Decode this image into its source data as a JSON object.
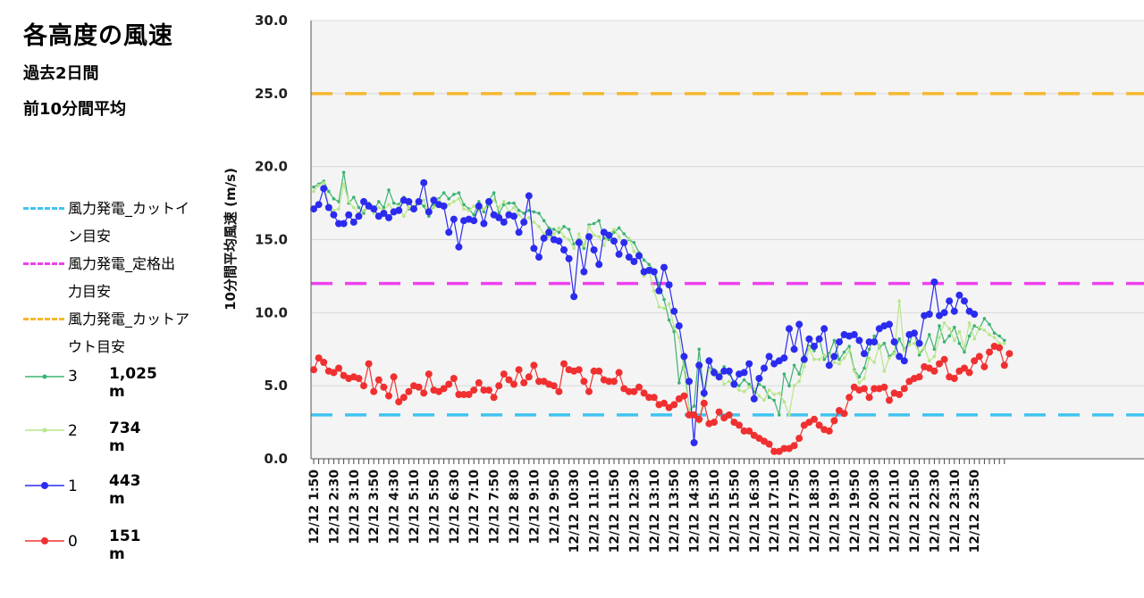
{
  "header": {
    "title": "各高度の風速",
    "period": "過去2日間",
    "averaging": "前10分間平均"
  },
  "legend": {
    "lines": [
      {
        "label_line1": "風力発電_カットイ",
        "label_line2": "ン目安",
        "color": "#40c4f0"
      },
      {
        "label_line1": "風力発電_定格出",
        "label_line2": "力目安",
        "color": "#f040f0"
      },
      {
        "label_line1": "風力発電_カットア",
        "label_line2": "ウト目安",
        "color": "#f5b82e"
      }
    ],
    "series": [
      {
        "num": "3",
        "altitude": "1,025 m",
        "color": "#3cb371"
      },
      {
        "num": "2",
        "altitude": "734 m",
        "color": "#b8e68a"
      },
      {
        "num": "1",
        "altitude": "443 m",
        "color": "#2b2bf0"
      },
      {
        "num": "0",
        "altitude": "151 m",
        "color": "#f03030"
      }
    ]
  },
  "chart_data": {
    "type": "line",
    "ylabel": "10分間平均風速 (m/s)",
    "ylim": [
      0,
      30
    ],
    "y_ticks": [
      "0.0",
      "5.0",
      "10.0",
      "15.0",
      "20.0",
      "25.0",
      "30.0"
    ],
    "x_tick_labels": [
      "12/12 1:50",
      "12/12 2:30",
      "12/12 3:10",
      "12/12 3:50",
      "12/12 4:30",
      "12/12 5:10",
      "12/12 5:50",
      "12/12 6:30",
      "12/12 7:10",
      "12/12 7:50",
      "12/12 8:30",
      "12/12 9:10",
      "12/12 9:50",
      "12/12 10:30",
      "12/12 11:10",
      "12/12 11:50",
      "12/12 12:30",
      "12/12 13:10",
      "12/12 13:50",
      "12/12 14:30",
      "12/12 15:10",
      "12/12 15:50",
      "12/12 16:30",
      "12/12 17:10",
      "12/12 17:50",
      "12/12 18:30",
      "12/12 19:10",
      "12/12 19:50",
      "12/12 20:30",
      "12/12 21:10",
      "12/12 21:50",
      "12/12 22:30",
      "12/12 23:10",
      "12/12 23:50"
    ],
    "x_label_step": 4,
    "grid": true,
    "reference_lines": [
      {
        "name": "風力発電_カットイン目安",
        "value": 3.0,
        "color": "#40c4f0"
      },
      {
        "name": "風力発電_定格出力目安",
        "value": 12.0,
        "color": "#f040f0"
      },
      {
        "name": "風力発電_カットアウト目安",
        "value": 25.0,
        "color": "#f5b82e"
      }
    ],
    "series": [
      {
        "name": "3 1,025 m",
        "color": "#3cb371",
        "marker": "small",
        "values": [
          18.6,
          18.8,
          19.0,
          18.3,
          17.8,
          17.6,
          19.6,
          17.5,
          17.9,
          17.2,
          16.8,
          17.5,
          17.0,
          17.6,
          17.2,
          18.4,
          17.5,
          17.4,
          17.9,
          17.1,
          17.0,
          17.6,
          17.3,
          16.6,
          17.4,
          17.8,
          18.2,
          17.8,
          18.1,
          18.2,
          17.4,
          17.1,
          16.7,
          17.6,
          16.9,
          17.7,
          18.2,
          16.8,
          17.4,
          17.5,
          17.5,
          17.0,
          16.8,
          17.0,
          16.9,
          16.8,
          16.3,
          15.8,
          15.7,
          15.5,
          15.9,
          15.7,
          14.7,
          15.0,
          14.4,
          16.0,
          16.1,
          16.3,
          15.1,
          15.0,
          15.5,
          15.8,
          15.4,
          15.0,
          14.8,
          14.1,
          13.6,
          13.3,
          12.9,
          11.9,
          10.9,
          9.5,
          8.7,
          5.2,
          6.7,
          3.3,
          3.6,
          7.5,
          4.3,
          6.2,
          6.1,
          5.6,
          6.3,
          5.8,
          5.3,
          5.0,
          5.4,
          5.1,
          4.6,
          5.1,
          4.9,
          4.2,
          4.0,
          3.0,
          5.8,
          5.0,
          6.4,
          5.8,
          7.0,
          7.7,
          7.4,
          8.3,
          6.8,
          7.2,
          8.1,
          6.8,
          7.3,
          7.7,
          6.1,
          5.6,
          6.2,
          7.5,
          8.4,
          7.6,
          7.9,
          7.0,
          7.3,
          8.2,
          7.5,
          8.0,
          8.7,
          7.1,
          7.6,
          8.5,
          7.5,
          9.1,
          8.0,
          8.4,
          9.0,
          7.9,
          7.3,
          8.4,
          9.1,
          8.9,
          9.6,
          9.2,
          8.6,
          8.4,
          8.1
        ]
      },
      {
        "name": "2 734 m",
        "color": "#b8e68a",
        "marker": "small",
        "values": [
          18.3,
          18.7,
          18.9,
          17.3,
          17.0,
          17.1,
          18.8,
          17.6,
          17.2,
          16.8,
          17.0,
          17.3,
          16.8,
          17.2,
          17.0,
          17.4,
          17.0,
          17.3,
          16.6,
          17.2,
          17.3,
          17.7,
          17.7,
          16.8,
          17.2,
          17.7,
          17.3,
          17.4,
          17.6,
          17.8,
          17.1,
          17.0,
          17.3,
          17.0,
          17.1,
          17.3,
          17.7,
          17.2,
          17.6,
          16.9,
          17.2,
          16.7,
          16.4,
          16.5,
          16.2,
          15.9,
          15.4,
          15.2,
          15.4,
          15.8,
          15.2,
          15.0,
          14.4,
          15.4,
          14.6,
          15.9,
          15.3,
          15.2,
          14.6,
          15.4,
          15.7,
          15.2,
          14.7,
          15.1,
          14.2,
          13.9,
          12.5,
          12.8,
          11.5,
          10.4,
          10.3,
          10.6,
          9.0,
          8.3,
          6.1,
          3.3,
          3.1,
          2.5,
          4.6,
          6.1,
          5.7,
          5.9,
          5.1,
          5.3,
          5.0,
          4.7,
          4.6,
          4.9,
          4.8,
          4.3,
          4.0,
          4.7,
          4.4,
          4.5,
          3.9,
          3.0,
          5.0,
          5.3,
          6.3,
          7.6,
          6.8,
          6.8,
          7.1,
          7.1,
          6.6,
          6.5,
          6.9,
          7.4,
          6.0,
          5.2,
          5.5,
          6.9,
          6.6,
          7.8,
          6.0,
          6.9,
          7.2,
          10.8,
          7.4,
          7.8,
          7.9,
          7.3,
          7.6,
          6.7,
          7.0,
          8.3,
          9.3,
          8.9,
          8.1,
          8.7,
          7.6,
          9.3,
          8.2,
          9.0,
          8.8,
          8.5,
          8.3,
          7.9,
          7.9
        ]
      },
      {
        "name": "1 443 m",
        "color": "#2b2bf0",
        "marker": "large",
        "values": [
          17.1,
          17.4,
          18.5,
          17.2,
          16.7,
          16.1,
          16.1,
          16.7,
          16.2,
          16.6,
          17.6,
          17.3,
          17.1,
          16.6,
          16.8,
          16.5,
          16.9,
          17.0,
          17.7,
          17.6,
          17.1,
          17.6,
          18.9,
          16.9,
          17.7,
          17.4,
          17.3,
          15.5,
          16.4,
          14.5,
          16.3,
          16.4,
          16.3,
          17.3,
          16.1,
          17.6,
          16.7,
          16.5,
          16.2,
          16.7,
          16.6,
          15.5,
          16.2,
          18.0,
          14.4,
          13.8,
          15.1,
          15.5,
          15.0,
          14.9,
          14.3,
          13.7,
          11.1,
          14.8,
          12.8,
          15.2,
          14.3,
          13.3,
          15.5,
          15.3,
          14.9,
          14.0,
          14.8,
          13.8,
          13.5,
          13.9,
          12.8,
          12.9,
          12.8,
          11.5,
          13.1,
          11.9,
          10.1,
          9.1,
          7.0,
          5.3,
          1.1,
          6.4,
          4.5,
          6.7,
          5.9,
          5.6,
          6.0,
          6.0,
          5.1,
          5.8,
          5.9,
          6.5,
          4.1,
          5.5,
          6.2,
          7.0,
          6.5,
          6.7,
          6.9,
          8.9,
          7.5,
          9.2,
          6.8,
          8.2,
          7.7,
          8.2,
          8.9,
          6.4,
          7.0,
          8.0,
          8.5,
          8.4,
          8.5,
          8.1,
          7.2,
          8.0,
          8.0,
          8.9,
          9.1,
          9.2,
          8.0,
          7.0,
          6.7,
          8.5,
          8.6,
          7.9,
          9.8,
          9.9,
          12.1,
          9.8,
          10.0,
          10.8,
          10.1,
          11.2,
          10.8,
          10.1,
          9.9
        ]
      },
      {
        "name": "0 151 m",
        "color": "#f03030",
        "marker": "large",
        "values": [
          6.1,
          6.9,
          6.6,
          6.0,
          5.9,
          6.2,
          5.7,
          5.5,
          5.6,
          5.5,
          5.0,
          6.5,
          4.6,
          5.4,
          4.9,
          4.3,
          5.6,
          3.9,
          4.2,
          4.6,
          5.0,
          4.9,
          4.5,
          5.8,
          4.7,
          4.6,
          4.8,
          5.1,
          5.5,
          4.4,
          4.4,
          4.4,
          4.7,
          5.2,
          4.7,
          4.7,
          4.2,
          5.0,
          5.8,
          5.4,
          5.1,
          6.1,
          5.2,
          5.6,
          6.4,
          5.3,
          5.3,
          5.1,
          5.0,
          4.6,
          6.5,
          6.1,
          6.0,
          6.1,
          5.3,
          4.6,
          6.0,
          6.0,
          5.4,
          5.3,
          5.3,
          5.9,
          4.8,
          4.6,
          4.6,
          4.9,
          4.5,
          4.2,
          4.2,
          3.7,
          3.8,
          3.5,
          3.7,
          4.1,
          4.3,
          3.0,
          3.0,
          2.7,
          3.8,
          2.4,
          2.5,
          3.2,
          2.8,
          3.0,
          2.5,
          2.3,
          1.9,
          1.9,
          1.6,
          1.4,
          1.2,
          1.0,
          0.5,
          0.5,
          0.7,
          0.7,
          0.9,
          1.4,
          2.3,
          2.5,
          2.7,
          2.3,
          2.0,
          1.9,
          2.6,
          3.3,
          3.1,
          4.2,
          4.9,
          4.7,
          4.8,
          4.2,
          4.8,
          4.8,
          4.9,
          4.0,
          4.5,
          4.4,
          4.8,
          5.3,
          5.5,
          5.6,
          6.3,
          6.2,
          6.0,
          6.5,
          6.8,
          5.6,
          5.5,
          6.0,
          6.2,
          5.9,
          6.7,
          7.0,
          6.3,
          7.3,
          7.7,
          7.6,
          6.4,
          7.2
        ]
      }
    ]
  }
}
